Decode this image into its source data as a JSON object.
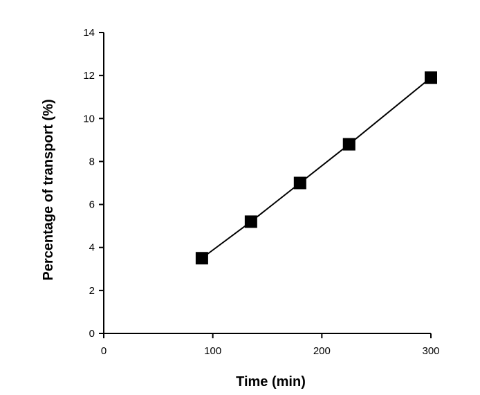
{
  "chart_data": {
    "type": "line",
    "title": "",
    "xlabel": "Time (min)",
    "ylabel": "Percentage of transport (%)",
    "xlim": [
      0,
      300
    ],
    "ylim": [
      0,
      14
    ],
    "x_ticks": [
      0,
      100,
      200,
      300
    ],
    "y_ticks": [
      0,
      2,
      4,
      6,
      8,
      10,
      12,
      14
    ],
    "x_tick_labels": [
      "0",
      "100",
      "200",
      "300"
    ],
    "y_tick_labels": [
      "0",
      "2",
      "4",
      "6",
      "8",
      "10",
      "12",
      "14"
    ],
    "grid": false,
    "legend": "none",
    "series": [
      {
        "marker": "square",
        "color": "#000000",
        "x": [
          90,
          135,
          180,
          225,
          300
        ],
        "y": [
          3.5,
          5.2,
          7.0,
          8.8,
          11.9
        ]
      }
    ]
  }
}
